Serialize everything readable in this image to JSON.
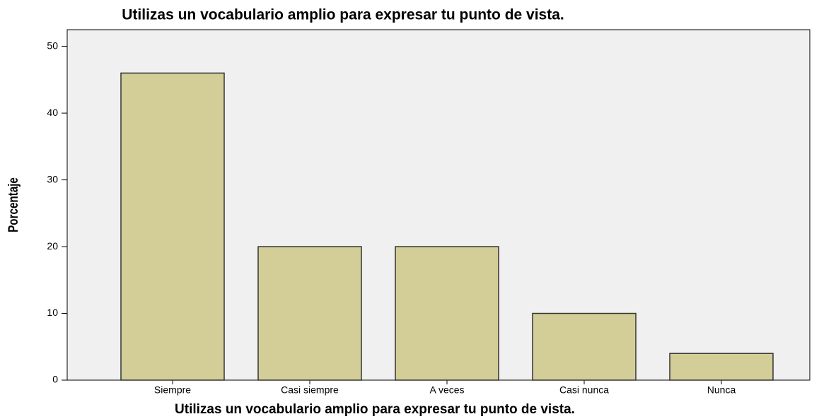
{
  "chart_data": {
    "type": "bar",
    "title": "Utilizas un vocabulario amplio para expresar tu punto de vista.",
    "x_label": "Utilizas un vocabulario amplio para expresar tu punto de vista.",
    "y_label": "Porcentaje",
    "categories": [
      "Siempre",
      "Casi siempre",
      "A veces",
      "Casi nunca",
      "Nunca"
    ],
    "values": [
      46,
      20,
      20,
      10,
      4
    ],
    "color": "#d3ce97",
    "ylim": [
      0,
      52.5
    ],
    "yticks": [
      0,
      10,
      20,
      30,
      40,
      50
    ],
    "grid": false
  }
}
